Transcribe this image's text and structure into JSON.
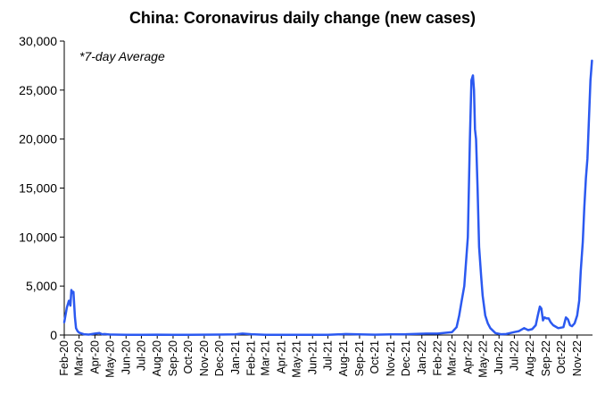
{
  "chart_data": {
    "type": "line",
    "title": "China: Coronavirus daily change (new cases)",
    "annotation": "*7-day Average",
    "xlabel": "",
    "ylabel": "",
    "ylim": [
      0,
      30000
    ],
    "yticks": [
      "0",
      "5,000",
      "10,000",
      "15,000",
      "20,000",
      "25,000",
      "30,000"
    ],
    "ytick_values": [
      0,
      5000,
      10000,
      15000,
      20000,
      25000,
      30000
    ],
    "xlim": [
      "2020-02-01",
      "2022-12-01"
    ],
    "categories": [
      "Feb-20",
      "Mar-20",
      "Apr-20",
      "May-20",
      "Jun-20",
      "Jul-20",
      "Aug-20",
      "Sep-20",
      "Oct-20",
      "Nov-20",
      "Dec-20",
      "Jan-21",
      "Feb-21",
      "Mar-21",
      "Apr-21",
      "May-21",
      "Jun-21",
      "Jul-21",
      "Aug-21",
      "Sep-21",
      "Oct-21",
      "Nov-21",
      "Dec-21",
      "Jan-22",
      "Feb-22",
      "Mar-22",
      "Apr-22",
      "May-22",
      "Jun-22",
      "Jul-22",
      "Aug-22",
      "Sep-22",
      "Oct-22",
      "Nov-22"
    ],
    "grid": false,
    "legend": "none",
    "line_color": "#2b59f0",
    "series": [
      {
        "x": [
          "2020-02-01",
          "2020-02-06",
          "2020-02-10",
          "2020-02-13",
          "2020-02-15",
          "2020-02-17",
          "2020-02-19",
          "2020-02-22",
          "2020-02-24",
          "2020-02-27",
          "2020-03-01",
          "2020-03-10",
          "2020-03-20",
          "2020-04-01",
          "2020-04-10",
          "2020-04-15",
          "2020-04-20",
          "2020-05-01",
          "2020-06-01",
          "2020-07-01",
          "2020-08-01",
          "2020-09-01",
          "2020-10-01",
          "2020-11-01",
          "2020-12-01",
          "2021-01-01",
          "2021-01-15",
          "2021-02-01",
          "2021-03-01",
          "2021-04-01",
          "2021-05-01",
          "2021-06-01",
          "2021-07-01",
          "2021-08-05",
          "2021-09-01",
          "2021-10-01",
          "2021-11-01",
          "2021-12-01",
          "2022-01-10",
          "2022-02-01",
          "2022-03-01",
          "2022-03-10",
          "2022-03-15",
          "2022-03-20",
          "2022-03-25",
          "2022-04-01",
          "2022-04-05",
          "2022-04-08",
          "2022-04-11",
          "2022-04-13",
          "2022-04-15",
          "2022-04-17",
          "2022-04-20",
          "2022-04-23",
          "2022-04-27",
          "2022-04-30",
          "2022-05-05",
          "2022-05-10",
          "2022-05-15",
          "2022-05-25",
          "2022-06-05",
          "2022-06-15",
          "2022-07-01",
          "2022-07-10",
          "2022-07-20",
          "2022-07-28",
          "2022-08-05",
          "2022-08-12",
          "2022-08-16",
          "2022-08-20",
          "2022-08-23",
          "2022-08-26",
          "2022-08-29",
          "2022-09-02",
          "2022-09-06",
          "2022-09-10",
          "2022-09-15",
          "2022-09-25",
          "2022-10-05",
          "2022-10-10",
          "2022-10-14",
          "2022-10-18",
          "2022-10-22",
          "2022-10-27",
          "2022-11-01",
          "2022-11-05",
          "2022-11-08",
          "2022-11-12",
          "2022-11-15",
          "2022-11-18",
          "2022-11-21",
          "2022-11-24",
          "2022-11-27",
          "2022-11-30"
        ],
        "y": [
          1300,
          2800,
          3500,
          3000,
          4600,
          4300,
          4400,
          1800,
          700,
          400,
          250,
          80,
          50,
          150,
          200,
          80,
          100,
          50,
          30,
          20,
          40,
          20,
          30,
          40,
          50,
          60,
          150,
          80,
          20,
          20,
          20,
          30,
          20,
          100,
          60,
          40,
          70,
          80,
          150,
          150,
          300,
          800,
          2000,
          3500,
          5000,
          10000,
          20000,
          26000,
          26500,
          25000,
          21000,
          20000,
          15000,
          9000,
          6000,
          4000,
          2000,
          1200,
          700,
          200,
          80,
          100,
          300,
          400,
          700,
          500,
          600,
          1000,
          2000,
          2900,
          2700,
          1500,
          1800,
          1700,
          1700,
          1300,
          1000,
          700,
          800,
          1800,
          1600,
          1000,
          900,
          1200,
          2000,
          3500,
          6500,
          9500,
          13000,
          16000,
          18000,
          22000,
          26000,
          28000
        ]
      }
    ]
  }
}
